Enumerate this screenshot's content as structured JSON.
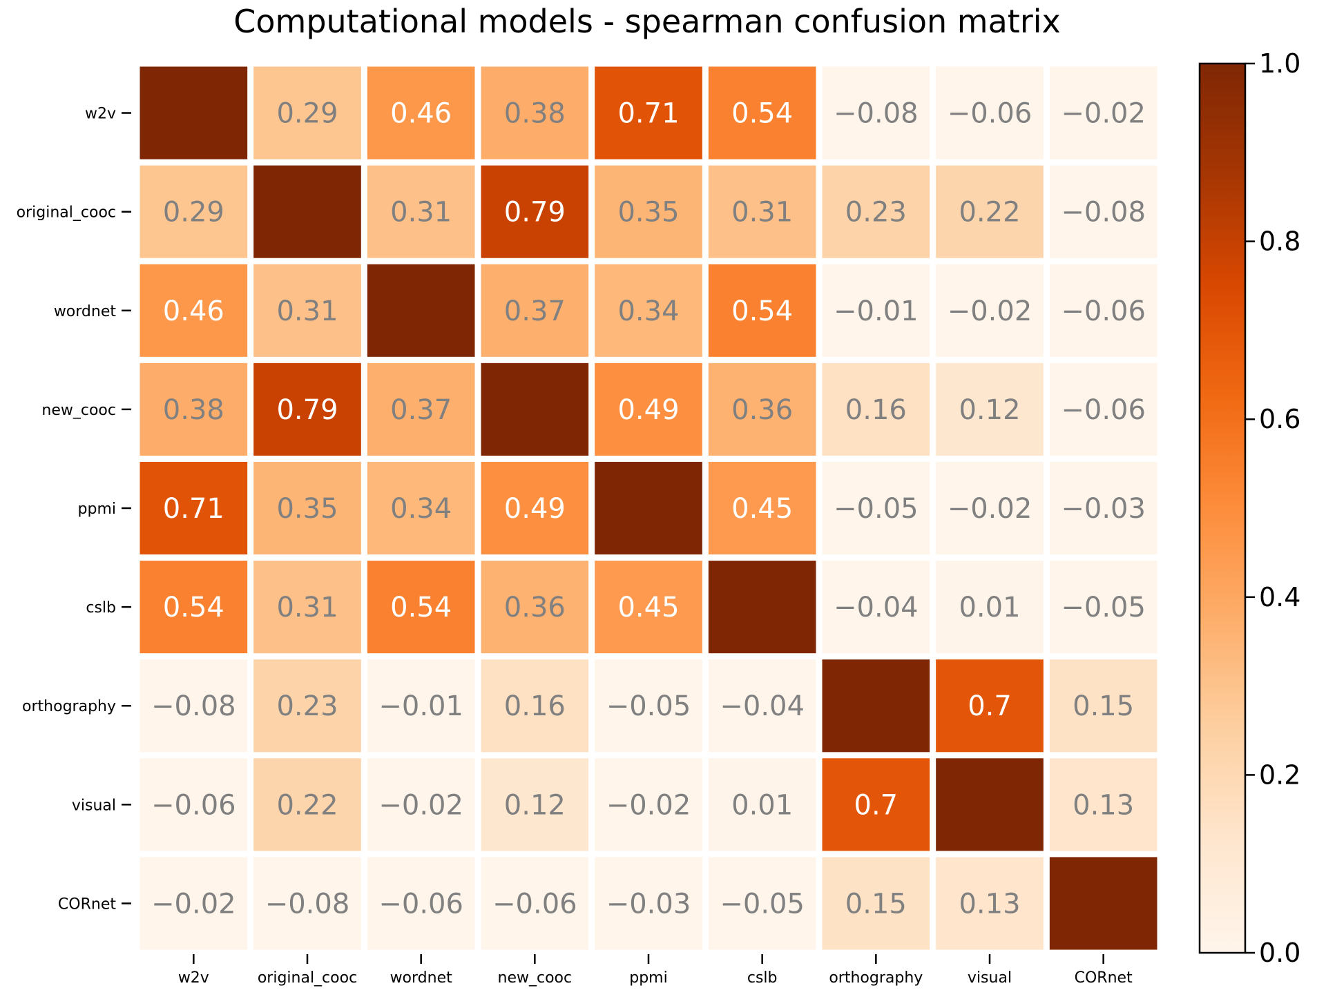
{
  "chart_data": {
    "type": "heatmap",
    "title": "Computational models - spearman confusion matrix",
    "row_labels": [
      "w2v",
      "original_cooc",
      "wordnet",
      "new_cooc",
      "ppmi",
      "cslb",
      "orthography",
      "visual",
      "CORnet"
    ],
    "col_labels": [
      "w2v",
      "original_cooc",
      "wordnet",
      "new_cooc",
      "ppmi",
      "cslb",
      "orthography",
      "visual",
      "CORnet"
    ],
    "values": [
      [
        1.0,
        0.29,
        0.46,
        0.38,
        0.71,
        0.54,
        -0.08,
        -0.06,
        -0.02
      ],
      [
        0.29,
        1.0,
        0.31,
        0.79,
        0.35,
        0.31,
        0.23,
        0.22,
        -0.08
      ],
      [
        0.46,
        0.31,
        1.0,
        0.37,
        0.34,
        0.54,
        -0.01,
        -0.02,
        -0.06
      ],
      [
        0.38,
        0.79,
        0.37,
        1.0,
        0.49,
        0.36,
        0.16,
        0.12,
        -0.06
      ],
      [
        0.71,
        0.35,
        0.34,
        0.49,
        1.0,
        0.45,
        -0.05,
        -0.02,
        -0.03
      ],
      [
        0.54,
        0.31,
        0.54,
        0.36,
        0.45,
        1.0,
        -0.04,
        0.01,
        -0.05
      ],
      [
        -0.08,
        0.23,
        -0.01,
        0.16,
        -0.05,
        -0.04,
        1.0,
        0.7,
        0.15
      ],
      [
        -0.06,
        0.22,
        -0.02,
        0.12,
        -0.02,
        0.01,
        0.7,
        1.0,
        0.13
      ],
      [
        -0.02,
        -0.08,
        -0.06,
        -0.06,
        -0.03,
        -0.05,
        0.15,
        0.13,
        1.0
      ]
    ],
    "cell_labels": [
      [
        "",
        "0.29",
        "0.46",
        "0.38",
        "0.71",
        "0.54",
        "−0.08",
        "−0.06",
        "−0.02"
      ],
      [
        "0.29",
        "",
        "0.31",
        "0.79",
        "0.35",
        "0.31",
        "0.23",
        "0.22",
        "−0.08"
      ],
      [
        "0.46",
        "0.31",
        "",
        "0.37",
        "0.34",
        "0.54",
        "−0.01",
        "−0.02",
        "−0.06"
      ],
      [
        "0.38",
        "0.79",
        "0.37",
        "",
        "0.49",
        "0.36",
        "0.16",
        "0.12",
        "−0.06"
      ],
      [
        "0.71",
        "0.35",
        "0.34",
        "0.49",
        "",
        "0.45",
        "−0.05",
        "−0.02",
        "−0.03"
      ],
      [
        "0.54",
        "0.31",
        "0.54",
        "0.36",
        "0.45",
        "",
        "−0.04",
        "0.01",
        "−0.05"
      ],
      [
        "−0.08",
        "0.23",
        "−0.01",
        "0.16",
        "−0.05",
        "−0.04",
        "",
        "0.7",
        "0.15"
      ],
      [
        "−0.06",
        "0.22",
        "−0.02",
        "0.12",
        "−0.02",
        "0.01",
        "0.7",
        "",
        "0.13"
      ],
      [
        "−0.02",
        "−0.08",
        "−0.06",
        "−0.06",
        "−0.03",
        "−0.05",
        "0.15",
        "0.13",
        ""
      ]
    ],
    "colormap": "Oranges",
    "vmin": 0.0,
    "vmax": 1.0,
    "colorbar_ticks": [
      "0.0",
      "0.2",
      "0.4",
      "0.6",
      "0.8",
      "1.0"
    ],
    "colorbar_tick_values": [
      0.0,
      0.2,
      0.4,
      0.6,
      0.8,
      1.0
    ],
    "grid_line_color": "#ffffff",
    "label_color_dark": "#808080",
    "label_color_light": "#ffffff"
  }
}
